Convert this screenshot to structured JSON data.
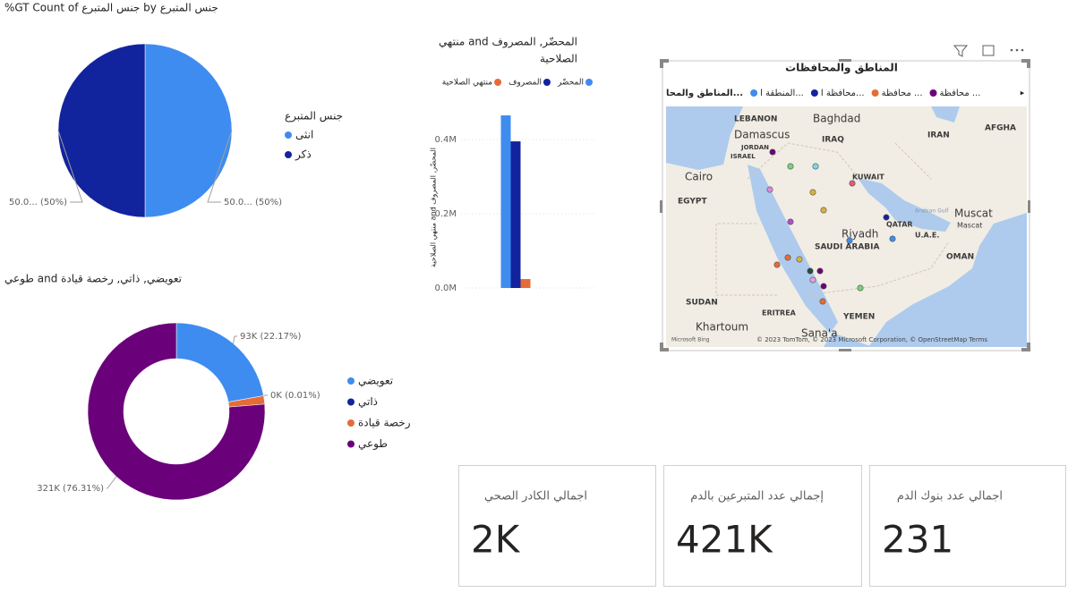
{
  "chart_data": [
    {
      "type": "pie",
      "title": "%GT Count of جنس المتبرع by جنس المتبرع",
      "legend_title": "جنس المتبرع",
      "categories": [
        "انثى",
        "ذكر"
      ],
      "values": [
        50,
        50
      ],
      "value_labels": [
        "50.0... (50%)",
        "50.0... (50%)"
      ],
      "colors": [
        "#3f8cf0",
        "#12239e"
      ]
    },
    {
      "type": "donut",
      "title": "طوعي and تعويضي, ذاتي, رخصة قيادة",
      "categories": [
        "تعويضي",
        "ذاتي",
        "رخصة قيادة",
        "طوعي"
      ],
      "values": [
        93270,
        42,
        6348,
        321040
      ],
      "value_labels": [
        "93K (22.17%)",
        "0K (0.01%)",
        null,
        "321K (76.31%)"
      ],
      "colors": [
        "#3f8cf0",
        "#12239e",
        "#e66c37",
        "#6b007b"
      ]
    },
    {
      "type": "bar",
      "title": [
        "منتهي and المحضّر, المصروف",
        "الصلاحية"
      ],
      "y_label": "منتهي الصلاحية and المحضّر, المصروف",
      "categories": [
        null
      ],
      "series": [
        {
          "name": "المحضّر",
          "color": "#3f8cf0",
          "values": [
            465000
          ]
        },
        {
          "name": "المصروف",
          "color": "#12239e",
          "values": [
            395000
          ]
        },
        {
          "name": "منتهي الصلاحية",
          "color": "#e66c37",
          "values": [
            24000
          ]
        }
      ],
      "ylim": [
        0,
        500000
      ],
      "yticks": [
        {
          "value": 0,
          "label": "0.0M"
        },
        {
          "value": 200000,
          "label": "0.2M"
        },
        {
          "value": 400000,
          "label": "0.4M"
        }
      ],
      "grid": true
    }
  ],
  "map": {
    "title": "المناطق والمحافظات",
    "legend_title": "المناطق والمحا...",
    "legend": [
      {
        "name": "المنطقة ا...",
        "color": "#3f8cf0"
      },
      {
        "name": "محافظة ا...",
        "color": "#12239e"
      },
      {
        "name": "محافظة ...",
        "color": "#e66c37"
      },
      {
        "name": "محافظة ...",
        "color": "#6b007b"
      }
    ],
    "places": [
      "LEBANON",
      "Baghdad",
      "Damascus",
      "IRAQ",
      "IRAN",
      "AFGHA",
      "JORDAN",
      "ISRAEL",
      "Cairo",
      "KUWAIT",
      "EGYPT",
      "Arabian Gulf",
      "QATAR",
      "Muscat",
      "Mascat",
      "Riyadh",
      "U.A.E.",
      "SAUDI ARABIA",
      "OMAN",
      "SUDAN",
      "ERITREA",
      "YEMEN",
      "Khartoum",
      "Sana'a"
    ],
    "logo": "Microsoft Bing",
    "attribution": "© 2023 TomTom, © 2023 Microsoft Corporation, © OpenStreetMap  Terms"
  },
  "cards": [
    {
      "label": "اجمالي الكادر الصحي",
      "value": "2K"
    },
    {
      "label": "إجمالي عدد المتبرعين بالدم",
      "value": "421K"
    },
    {
      "label": "اجمالي عدد بنوك الدم",
      "value": "231"
    }
  ]
}
